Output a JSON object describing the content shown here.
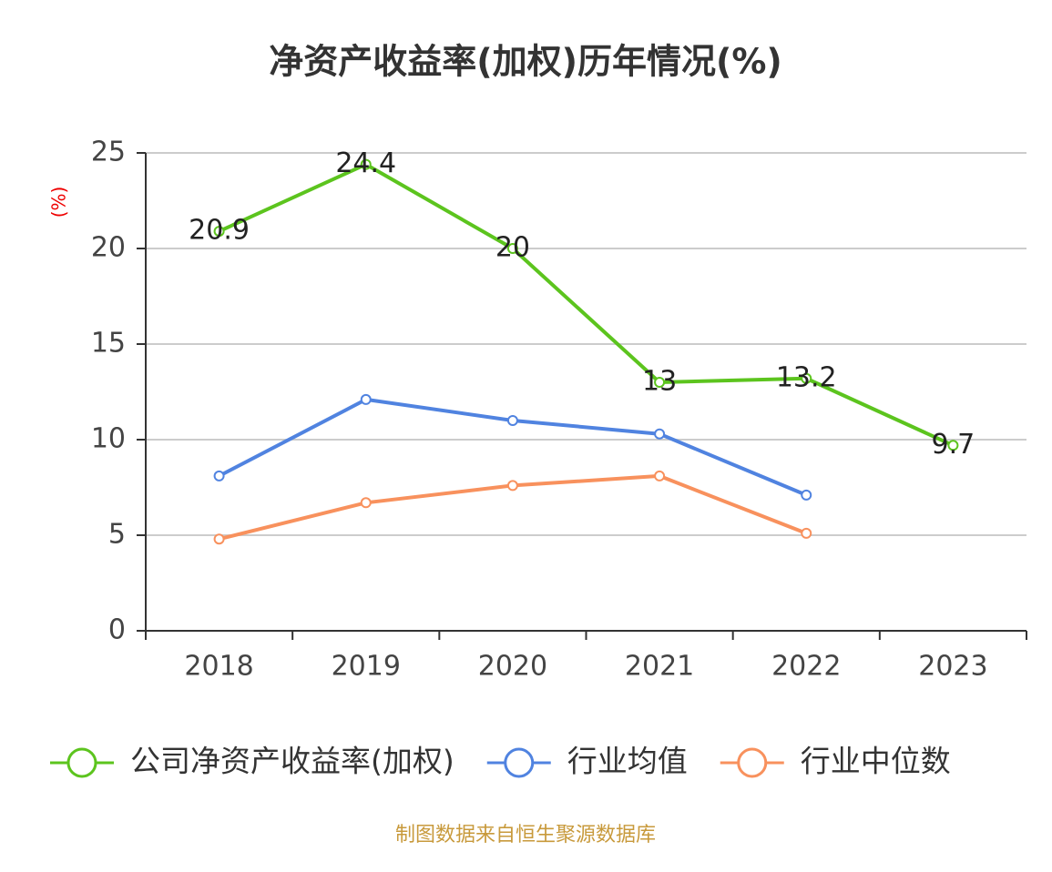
{
  "chart_data": {
    "type": "line",
    "title": "净资产收益率(加权)历年情况(%)",
    "y_label": "(%)",
    "categories": [
      "2018",
      "2019",
      "2020",
      "2021",
      "2022",
      "2023"
    ],
    "series": [
      {
        "name": "公司净资产收益率(加权)",
        "color": "#5cc41e",
        "values": [
          20.9,
          24.4,
          20,
          13,
          13.2,
          9.7
        ],
        "show_labels": true
      },
      {
        "name": "行业均值",
        "color": "#5083e0",
        "values": [
          8.1,
          12.1,
          11,
          10.3,
          7.1,
          null
        ]
      },
      {
        "name": "行业中位数",
        "color": "#f8915d",
        "values": [
          4.8,
          6.7,
          7.6,
          8.1,
          5.1,
          null
        ]
      }
    ],
    "ylim": [
      0,
      25
    ],
    "yticks": [
      0,
      5,
      10,
      15,
      20,
      25
    ],
    "grid": true,
    "source": "制图数据来自恒生聚源数据库"
  }
}
